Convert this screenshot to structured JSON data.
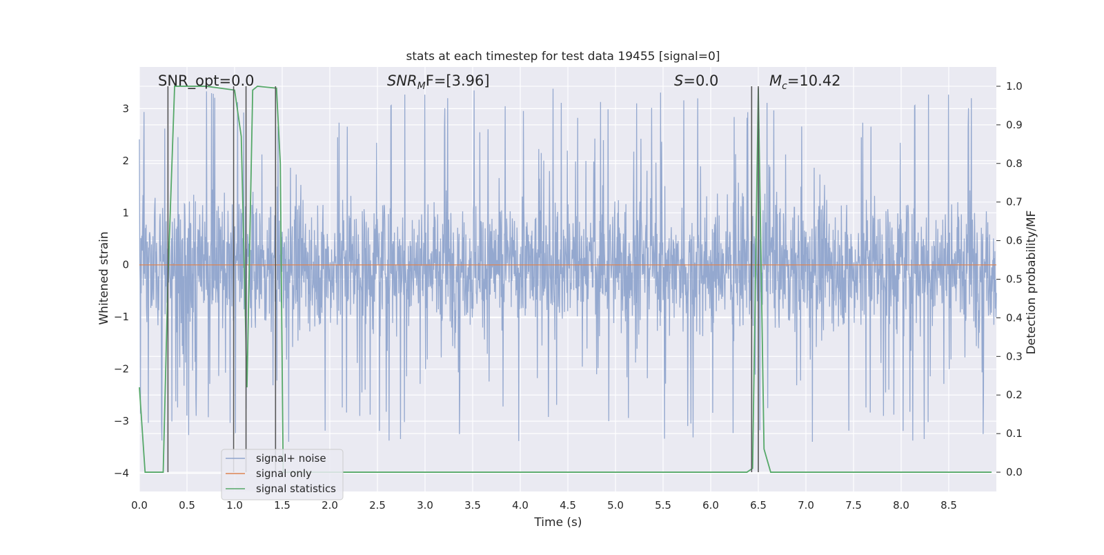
{
  "chart_data": {
    "type": "line",
    "title": "stats at each timestep for test data 19455 [signal=0]",
    "xlabel": "Time (s)",
    "ylabel": "Whitened strain",
    "y2label": "Detection probability/MF",
    "xlim": [
      0.0,
      9.0
    ],
    "ylim": [
      -4.35,
      3.8
    ],
    "y2lim": [
      -0.05,
      1.05
    ],
    "x_ticks": [
      0.0,
      0.5,
      1.0,
      1.5,
      2.0,
      2.5,
      3.0,
      3.5,
      4.0,
      4.5,
      5.0,
      5.5,
      6.0,
      6.5,
      7.0,
      7.5,
      8.0,
      8.5
    ],
    "x_tick_labels": [
      "0.0",
      "0.5",
      "1.0",
      "1.5",
      "2.0",
      "2.5",
      "3.0",
      "3.5",
      "4.0",
      "4.5",
      "5.0",
      "5.5",
      "6.0",
      "6.5",
      "7.0",
      "7.5",
      "8.0",
      "8.5"
    ],
    "y_ticks": [
      3,
      2,
      1,
      0,
      -1,
      -2,
      -3,
      -4
    ],
    "y_tick_labels": [
      "3",
      "2",
      "1",
      "0",
      "−1",
      "−2",
      "−3",
      "−4"
    ],
    "y2_ticks": [
      1.0,
      0.9,
      0.8,
      0.7,
      0.6,
      0.5,
      0.4,
      0.3,
      0.2,
      0.1,
      0.0
    ],
    "y2_tick_labels": [
      "1.0",
      "0.9",
      "0.8",
      "0.7",
      "0.6",
      "0.5",
      "0.4",
      "0.3",
      "0.2",
      "0.1",
      "0.0"
    ],
    "grid": true,
    "legend_position": "bottom-left",
    "annotations": {
      "snr_opt": "SNR_opt=0.0",
      "snr_mf_base": "SNR",
      "snr_mf_sub": "M",
      "snr_mf_rest": "F=[3.96]",
      "s_name": "S",
      "s_rest": "=0.0",
      "mc_base": "M",
      "mc_sub": "c",
      "mc_rest": "=10.42"
    },
    "series": [
      {
        "name": "signal+ noise",
        "color": "#8fa4cc",
        "kind": "noise",
        "noise_x_range": [
          0.0,
          9.0
        ],
        "noise_band": [
          -1.15,
          1.2
        ],
        "noise_peak_range": [
          -3.45,
          3.4
        ]
      },
      {
        "name": "signal only",
        "color": "#dd8452",
        "x": [
          0.0,
          9.0
        ],
        "y": [
          0.0,
          0.0
        ]
      },
      {
        "name": "signal statistics",
        "color": "#55a868",
        "axis": "right",
        "x": [
          0.0,
          0.06,
          0.25,
          0.3,
          0.37,
          0.7,
          1.0,
          1.07,
          1.13,
          1.19,
          1.24,
          1.44,
          1.48,
          1.51,
          6.38,
          6.44,
          6.5,
          6.56,
          6.63,
          8.95
        ],
        "y": [
          0.22,
          0.0,
          0.0,
          0.5,
          1.0,
          1.0,
          0.99,
          0.87,
          0.22,
          0.99,
          1.0,
          0.995,
          0.8,
          0.0,
          0.0,
          0.01,
          0.995,
          0.06,
          0.0,
          0.0
        ]
      }
    ],
    "marker_lines_x": [
      0.3,
      0.99,
      1.12,
      1.43,
      6.43,
      6.5
    ],
    "marker_color": "#555555"
  },
  "colors": {
    "plot_bg": "#eaeaf2",
    "grid": "#ffffff"
  }
}
